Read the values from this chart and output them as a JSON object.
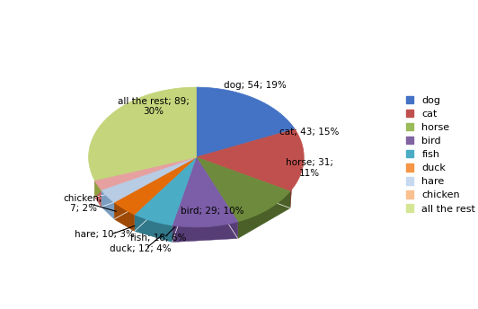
{
  "labels": [
    "dog",
    "cat",
    "horse",
    "bird",
    "fish",
    "duck",
    "hare",
    "chicken",
    "all the rest"
  ],
  "values": [
    54,
    43,
    31,
    29,
    18,
    12,
    10,
    7,
    89
  ],
  "top_colors": [
    "#4472C4",
    "#C0504D",
    "#6E8B3D",
    "#7B5EA7",
    "#4BACC6",
    "#E36C09",
    "#B8CCE4",
    "#E6A0A0",
    "#C4D57B"
  ],
  "side_colors": [
    "#2E4F8C",
    "#8B3630",
    "#4A6028",
    "#563D75",
    "#31788A",
    "#9E4A06",
    "#7A9DC0",
    "#C06060",
    "#8FA040"
  ],
  "legend_colors": [
    "#4472C4",
    "#C0504D",
    "#9BBB59",
    "#8064A2",
    "#4BACC6",
    "#F79646",
    "#C6D9F1",
    "#FAC090",
    "#D4E694"
  ],
  "legend_labels": [
    "dog",
    "cat",
    "horse",
    "bird",
    "fish",
    "duck",
    "hare",
    "chicken",
    "all the rest"
  ],
  "startangle": 90,
  "depth": 0.12,
  "background_color": "#FFFFFF",
  "label_data": [
    {
      "text": "dog; 54; 19%",
      "side": "right",
      "outside": false
    },
    {
      "text": "cat; 43; 15%",
      "side": "right",
      "outside": false
    },
    {
      "text": "horse; 31;\n11%",
      "side": "right",
      "outside": false
    },
    {
      "text": "bird; 29; 10%",
      "side": "left",
      "outside": false
    },
    {
      "text": "fish; 18; 6%",
      "side": "left",
      "outside": true
    },
    {
      "text": "duck; 12; 4%",
      "side": "left",
      "outside": true
    },
    {
      "text": "hare; 10; 3%",
      "side": "left",
      "outside": true
    },
    {
      "text": "chicken;\n7; 2%",
      "side": "left",
      "outside": true
    },
    {
      "text": "all the rest; 89;\n30%",
      "side": "left",
      "outside": false
    }
  ]
}
